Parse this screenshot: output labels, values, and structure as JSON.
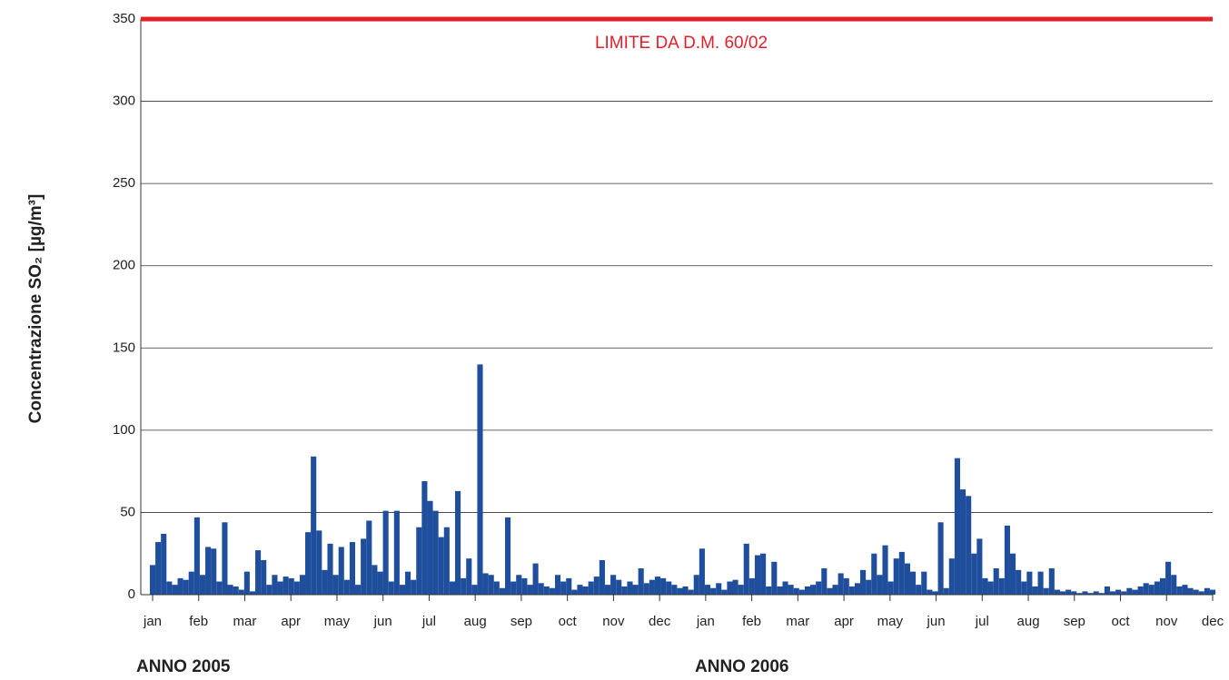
{
  "chart_data": {
    "type": "bar",
    "ylabel": "Concentrazione SO₂ [µg/m³]",
    "x_tick_labels": [
      "jan",
      "feb",
      "mar",
      "apr",
      "may",
      "jun",
      "jul",
      "aug",
      "sep",
      "oct",
      "nov",
      "dec",
      "jan",
      "feb",
      "mar",
      "apr",
      "may",
      "jun",
      "jul",
      "aug",
      "sep",
      "oct",
      "nov",
      "dec"
    ],
    "annotations": [
      "ANNO 2005",
      "ANNO 2006"
    ],
    "threshold": {
      "value": 350,
      "label": "LIMITE DA D.M. 60/02",
      "color": "#e3202a"
    },
    "color": "#1f4e9c",
    "ylim": [
      0,
      350
    ],
    "yticks": [
      0,
      50,
      100,
      150,
      200,
      250,
      300,
      350
    ],
    "grid": true,
    "values": [
      18,
      32,
      37,
      8,
      6,
      10,
      9,
      14,
      47,
      12,
      29,
      28,
      8,
      44,
      6,
      5,
      3,
      14,
      2,
      27,
      21,
      6,
      12,
      8,
      11,
      10,
      8,
      12,
      38,
      84,
      39,
      15,
      31,
      12,
      29,
      9,
      32,
      6,
      34,
      45,
      18,
      14,
      51,
      8,
      51,
      6,
      14,
      9,
      41,
      69,
      57,
      51,
      35,
      41,
      8,
      63,
      10,
      22,
      6,
      140,
      13,
      12,
      8,
      4,
      47,
      8,
      12,
      10,
      6,
      19,
      7,
      5,
      4,
      12,
      8,
      10,
      3,
      6,
      5,
      8,
      11,
      21,
      6,
      12,
      9,
      5,
      8,
      6,
      16,
      7,
      9,
      11,
      10,
      8,
      6,
      4,
      5,
      3,
      12,
      28,
      6,
      4,
      7,
      3,
      8,
      9,
      6,
      31,
      10,
      24,
      25,
      5,
      20,
      5,
      8,
      6,
      4,
      3,
      5,
      6,
      8,
      16,
      4,
      6,
      13,
      10,
      5,
      7,
      15,
      9,
      25,
      12,
      30,
      8,
      22,
      26,
      19,
      14,
      6,
      14,
      3,
      2,
      44,
      4,
      22,
      83,
      64,
      60,
      25,
      34,
      10,
      8,
      16,
      10,
      42,
      25,
      15,
      8,
      14,
      5,
      14,
      4,
      16,
      3,
      2,
      3,
      2,
      1,
      2,
      1,
      2,
      1,
      5,
      2,
      3,
      2,
      4,
      3,
      5,
      7,
      6,
      8,
      10,
      20,
      12,
      5,
      6,
      4,
      3,
      2,
      4,
      3
    ]
  }
}
